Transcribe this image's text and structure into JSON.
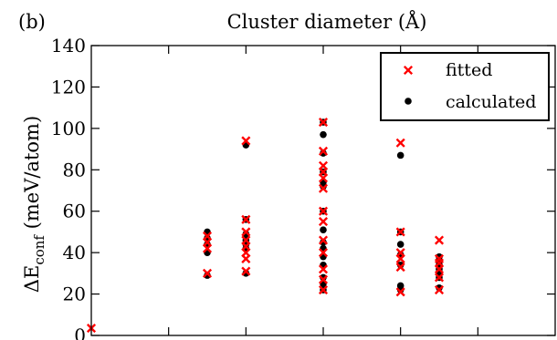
{
  "chart_data": {
    "type": "scatter",
    "panel_label": "(b)",
    "title": "Cluster diameter (Å)",
    "ylabel_main": "ΔE",
    "ylabel_sub": "conf",
    "ylabel_rest": " (meV/atom)",
    "xlim": [
      0,
      6
    ],
    "ylim": [
      0,
      140
    ],
    "yticks": [
      0,
      20,
      40,
      60,
      80,
      100,
      120,
      140
    ],
    "grid": false,
    "legend_position": "top-right",
    "colors": {
      "fitted": "#ff0000",
      "calculated": "#000000"
    },
    "series": [
      {
        "name": "fitted",
        "marker": "x",
        "points": [
          [
            0.0,
            3.5
          ],
          [
            1.5,
            30
          ],
          [
            1.5,
            42
          ],
          [
            1.5,
            45
          ],
          [
            1.5,
            48
          ],
          [
            2.0,
            94
          ],
          [
            2.0,
            56
          ],
          [
            2.0,
            50
          ],
          [
            2.0,
            46
          ],
          [
            2.0,
            43
          ],
          [
            2.0,
            40
          ],
          [
            2.0,
            37
          ],
          [
            2.0,
            31
          ],
          [
            3.0,
            103
          ],
          [
            3.0,
            89
          ],
          [
            3.0,
            82
          ],
          [
            3.0,
            79
          ],
          [
            3.0,
            76
          ],
          [
            3.0,
            71
          ],
          [
            3.0,
            60
          ],
          [
            3.0,
            55
          ],
          [
            3.0,
            46
          ],
          [
            3.0,
            40
          ],
          [
            3.0,
            32
          ],
          [
            3.0,
            27
          ],
          [
            3.0,
            22
          ],
          [
            4.0,
            93
          ],
          [
            4.0,
            50
          ],
          [
            4.0,
            40
          ],
          [
            4.0,
            37
          ],
          [
            4.0,
            33
          ],
          [
            4.0,
            21
          ],
          [
            4.5,
            46
          ],
          [
            4.5,
            37
          ],
          [
            4.5,
            35
          ],
          [
            4.5,
            32
          ],
          [
            4.5,
            28
          ],
          [
            4.5,
            22
          ]
        ]
      },
      {
        "name": "calculated",
        "marker": "o",
        "points": [
          [
            1.5,
            50
          ],
          [
            1.5,
            47
          ],
          [
            1.5,
            44
          ],
          [
            1.5,
            40
          ],
          [
            1.5,
            29
          ],
          [
            2.0,
            92
          ],
          [
            2.0,
            56
          ],
          [
            2.0,
            49
          ],
          [
            2.0,
            46
          ],
          [
            2.0,
            44
          ],
          [
            2.0,
            42
          ],
          [
            2.0,
            30
          ],
          [
            3.0,
            103
          ],
          [
            3.0,
            97
          ],
          [
            3.0,
            88
          ],
          [
            3.0,
            79
          ],
          [
            3.0,
            74
          ],
          [
            3.0,
            72
          ],
          [
            3.0,
            60
          ],
          [
            3.0,
            51
          ],
          [
            3.0,
            45
          ],
          [
            3.0,
            42
          ],
          [
            3.0,
            38
          ],
          [
            3.0,
            34
          ],
          [
            3.0,
            28
          ],
          [
            3.0,
            25
          ],
          [
            3.0,
            22
          ],
          [
            4.0,
            87
          ],
          [
            4.0,
            50
          ],
          [
            4.0,
            44
          ],
          [
            4.0,
            39
          ],
          [
            4.0,
            34
          ],
          [
            4.0,
            24
          ],
          [
            4.0,
            22
          ],
          [
            4.5,
            38
          ],
          [
            4.5,
            36
          ],
          [
            4.5,
            34
          ],
          [
            4.5,
            32
          ],
          [
            4.5,
            30
          ],
          [
            4.5,
            28
          ],
          [
            4.5,
            23
          ]
        ]
      }
    ]
  }
}
